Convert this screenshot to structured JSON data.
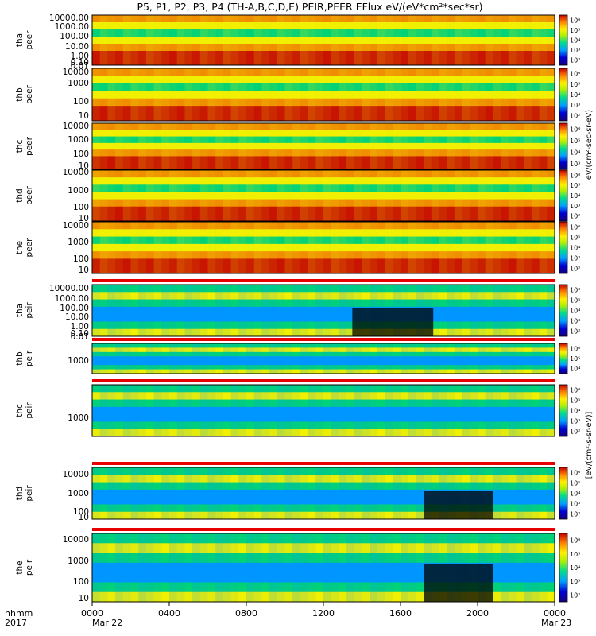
{
  "title": "P5, P1, P2, P3, P4 (TH-A,B,C,D,E) PEIR,PEER EFlux eV/(eV*cm²*sec*sr)",
  "footer": {
    "hhmm_label": "hhmm",
    "year_label": "2017",
    "date_start": "Mar 22",
    "date_end": "Mar 23"
  },
  "colorbar_label_peer": "eV/(cm²-sec-sr-eV)",
  "colorbar_label_peir": "[eV/(cm²-s-sr-eV)]",
  "colorbar_ticks": [
    "10²",
    "10³",
    "10⁴",
    "10⁵",
    "10⁶"
  ],
  "colors": {
    "high": "#c81400",
    "mid_high": "#f08c00",
    "mid": "#f0f000",
    "mid_low": "#00d278",
    "low": "#0096ff",
    "very_low": "#0000b4",
    "flag_bar": "#e60000",
    "flag_alt": "#f5f0b4"
  },
  "chart_data": [
    {
      "type": "heatmap",
      "probe": "tha",
      "species": "peer",
      "yticks": [
        "10000.00",
        "1000.00",
        "100.00",
        "10.00",
        "1.00",
        "0.10",
        "0.01"
      ]
    },
    {
      "type": "heatmap",
      "probe": "thb",
      "species": "peer",
      "yticks": [
        "10000",
        "1000",
        "100",
        "10"
      ]
    },
    {
      "type": "heatmap",
      "probe": "thc",
      "species": "peer",
      "yticks": [
        "10000",
        "1000",
        "100",
        "10"
      ]
    },
    {
      "type": "heatmap",
      "probe": "thd",
      "species": "peer",
      "yticks": [
        "10000",
        "1000",
        "100",
        "10"
      ]
    },
    {
      "type": "heatmap",
      "probe": "the",
      "species": "peer",
      "yticks": [
        "10000",
        "1000",
        "100",
        "10"
      ]
    },
    {
      "type": "heatmap",
      "probe": "tha",
      "species": "peir",
      "yticks": [
        "10000.00",
        "1000.00",
        "100.00",
        "10.00",
        "1.00",
        "0.10",
        "0.01"
      ]
    },
    {
      "type": "heatmap",
      "probe": "thb",
      "species": "peir",
      "yticks": [
        "1000"
      ]
    },
    {
      "type": "heatmap",
      "probe": "thc",
      "species": "peir",
      "yticks": [
        "1000"
      ]
    },
    {
      "type": "heatmap",
      "probe": "thd",
      "species": "peir",
      "yticks": [
        "10000",
        "1000",
        "100",
        "10"
      ]
    },
    {
      "type": "heatmap",
      "probe": "the",
      "species": "peir",
      "yticks": [
        "10000",
        "1000",
        "100",
        "10"
      ]
    }
  ],
  "x_axis": {
    "ticks": [
      "0000",
      "0400",
      "0800",
      "1200",
      "1600",
      "2000",
      "0000"
    ],
    "range_hours": [
      0,
      24
    ]
  }
}
